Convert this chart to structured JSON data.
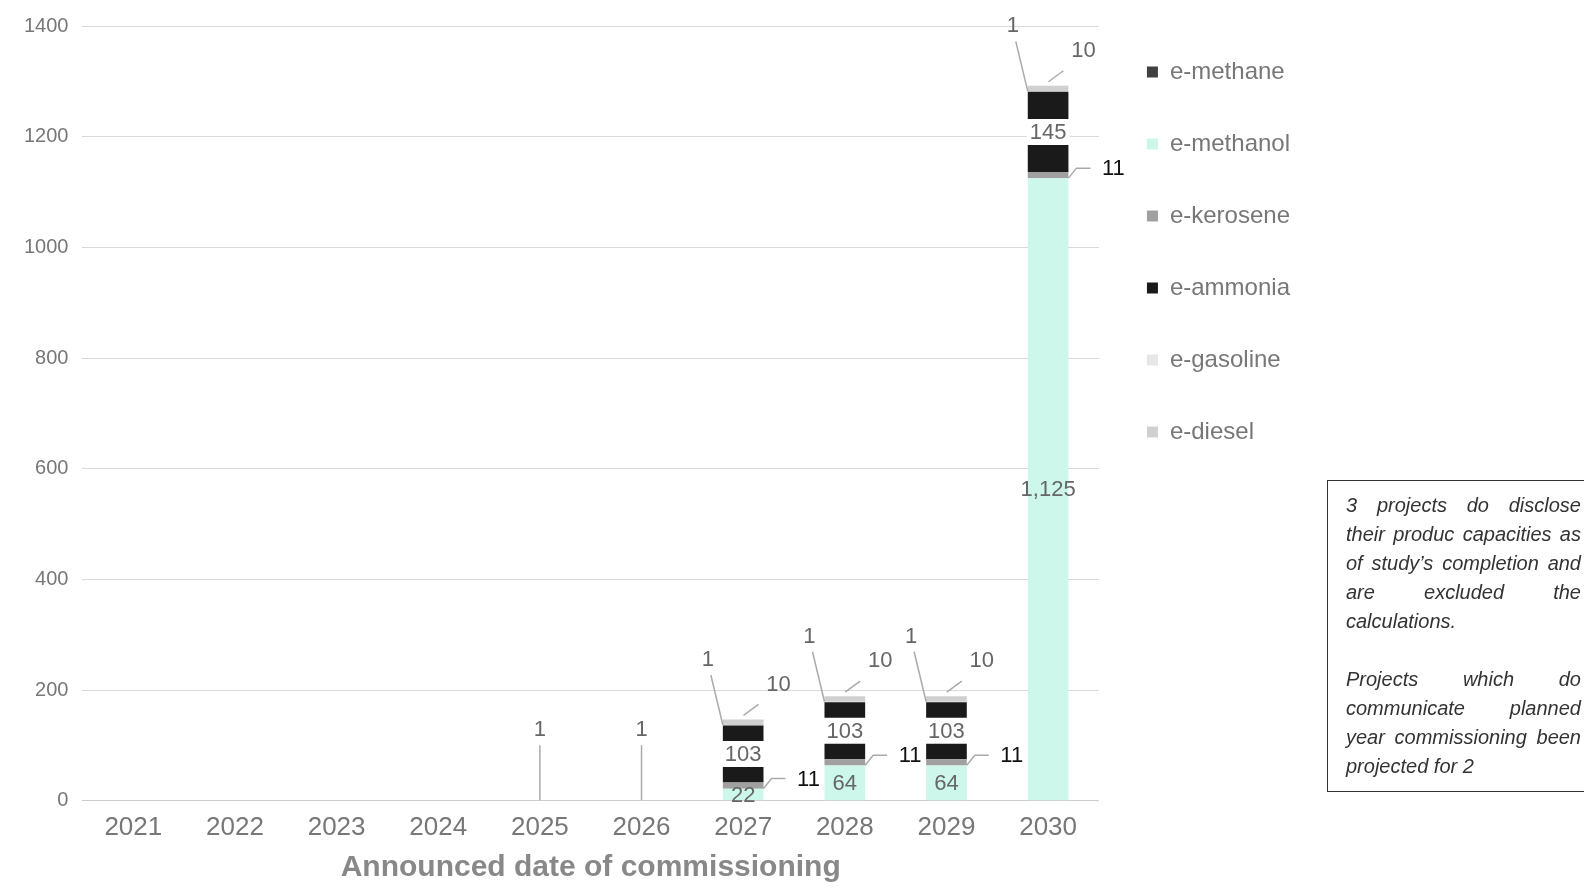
{
  "chart_data": {
    "type": "bar",
    "stacked": true,
    "xlabel": "Announced date of commissioning",
    "categories": [
      "2021",
      "2022",
      "2023",
      "2024",
      "2025",
      "2026",
      "2027",
      "2028",
      "2029",
      "2030"
    ],
    "ylim": [
      0,
      1400
    ],
    "yticks": [
      0,
      200,
      400,
      600,
      800,
      1000,
      1200,
      1400
    ],
    "grid": "y",
    "legend": "right",
    "series": [
      {
        "name": "e-methane",
        "color": "#404040",
        "values": [
          null,
          null,
          null,
          null,
          null,
          null,
          null,
          null,
          null,
          null
        ]
      },
      {
        "name": "e-methanol",
        "color": "#ccf7ea",
        "values": [
          null,
          null,
          null,
          null,
          null,
          null,
          22,
          64,
          64,
          1125
        ],
        "value_labels": [
          null,
          null,
          null,
          null,
          null,
          null,
          "22",
          "64",
          "64",
          "1,125"
        ]
      },
      {
        "name": "e-kerosene",
        "color": "#a0a0a0",
        "values": [
          null,
          null,
          null,
          null,
          null,
          null,
          11,
          11,
          11,
          11
        ],
        "value_labels": [
          null,
          null,
          null,
          null,
          null,
          null,
          "11",
          "11",
          "11",
          "11"
        ]
      },
      {
        "name": "e-ammonia",
        "color": "#1a1a1a",
        "values": [
          null,
          null,
          null,
          null,
          null,
          null,
          103,
          103,
          103,
          145
        ],
        "value_labels": [
          null,
          null,
          null,
          null,
          null,
          null,
          "103",
          "103",
          "103",
          "145"
        ]
      },
      {
        "name": "e-gasoline",
        "color": "#e6e6e6",
        "values": [
          null,
          null,
          null,
          null,
          1,
          1,
          1,
          1,
          1,
          1
        ],
        "value_labels": [
          null,
          null,
          null,
          null,
          "1",
          "1",
          "1",
          "1",
          "1",
          "1"
        ]
      },
      {
        "name": "e-diesel",
        "color": "#d0d0d0",
        "values": [
          null,
          null,
          null,
          null,
          null,
          null,
          10,
          10,
          10,
          10
        ],
        "value_labels": [
          null,
          null,
          null,
          null,
          null,
          null,
          "10",
          "10",
          "10",
          "10"
        ]
      }
    ],
    "annotations": [
      "3 projects do disclose their produc capacities as of study’s completion and are excluded the calculations.",
      "Projects which do communicate planned year commissioning been projected for 2"
    ]
  }
}
